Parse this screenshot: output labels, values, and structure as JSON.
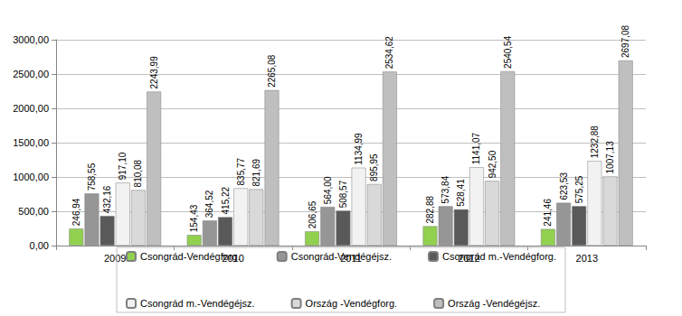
{
  "chart_data": {
    "type": "bar",
    "categories": [
      "2009",
      "2010",
      "2011",
      "2012",
      "2013"
    ],
    "series": [
      {
        "name": "Csongrád-Vendégforg.",
        "color": "#92d050",
        "values": [
          246.94,
          154.43,
          206.65,
          282.88,
          241.46
        ],
        "value_labels": [
          "246,94",
          "154,43",
          "206,65",
          "282,88",
          "241,46"
        ]
      },
      {
        "name": "Csongrád-Vendégéjsz.",
        "color": "#969696",
        "values": [
          758.55,
          364.52,
          564.0,
          573.84,
          623.53
        ],
        "value_labels": [
          "758,55",
          "364,52",
          "564,00",
          "573,84",
          "623,53"
        ]
      },
      {
        "name": "Csongrád m.-Vendégforg.",
        "color": "#595959",
        "values": [
          432.16,
          415.22,
          508.57,
          528.41,
          575.25
        ],
        "value_labels": [
          "432,16",
          "415,22",
          "508,57",
          "528,41",
          "575,25"
        ]
      },
      {
        "name": "Csongrád m.-Vendégéjsz.",
        "color": "#f2f2f2",
        "values": [
          917.1,
          835.77,
          1134.99,
          1141.07,
          1232.88
        ],
        "value_labels": [
          "917,10",
          "835,77",
          "1134,99",
          "1141,07",
          "1232,88"
        ]
      },
      {
        "name": "Ország -Vendégforg.",
        "color": "#d9d9d9",
        "values": [
          810.08,
          821.69,
          895.95,
          942.5,
          1007.13
        ],
        "value_labels": [
          "810,08",
          "821,69",
          "895,95",
          "942,50",
          "1007,13"
        ]
      },
      {
        "name": "Ország -Vendégéjsz.",
        "color": "#bfbfbf",
        "values": [
          2243.99,
          2265.08,
          2534.62,
          2540.54,
          2697.08
        ],
        "value_labels": [
          "2243,99",
          "2265,08",
          "2534,62",
          "2540,54",
          "2697,08"
        ]
      }
    ],
    "ylim": [
      0,
      3000
    ],
    "yticks": [
      {
        "value": 0,
        "label": "0,00"
      },
      {
        "value": 500,
        "label": "500,00"
      },
      {
        "value": 1000,
        "label": "1000,00"
      },
      {
        "value": 1500,
        "label": "1500,00"
      },
      {
        "value": 2000,
        "label": "2000,00"
      },
      {
        "value": 2500,
        "label": "2500,00"
      },
      {
        "value": 3000,
        "label": "3000,00"
      }
    ],
    "grid": true,
    "legend": "bottom",
    "data_labels": true
  }
}
